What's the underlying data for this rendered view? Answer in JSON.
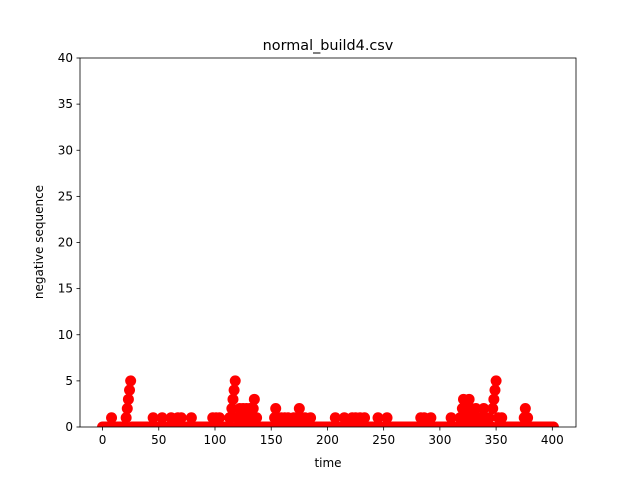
{
  "chart_data": {
    "type": "scatter",
    "title": "normal_build4.csv",
    "xlabel": "time",
    "ylabel": "negative sequence",
    "color": "#ff0000",
    "xlim": [
      -20.05,
      421.05
    ],
    "ylim": [
      0,
      40
    ],
    "xticks": [
      0,
      50,
      100,
      150,
      200,
      250,
      300,
      350,
      400
    ],
    "yticks": [
      0,
      5,
      10,
      15,
      20,
      25,
      30,
      35,
      40
    ],
    "x": [
      0,
      1,
      2,
      3,
      4,
      5,
      6,
      7,
      8,
      9,
      10,
      11,
      12,
      13,
      14,
      15,
      16,
      17,
      18,
      19,
      20,
      21,
      22,
      23,
      24,
      25,
      26,
      27,
      28,
      29,
      30,
      31,
      32,
      33,
      34,
      35,
      36,
      37,
      38,
      39,
      40,
      41,
      42,
      43,
      44,
      45,
      46,
      47,
      48,
      49,
      50,
      51,
      52,
      53,
      54,
      55,
      56,
      57,
      58,
      59,
      60,
      61,
      62,
      63,
      64,
      65,
      66,
      67,
      68,
      69,
      70,
      71,
      72,
      73,
      74,
      75,
      76,
      77,
      78,
      79,
      80,
      81,
      82,
      83,
      84,
      85,
      86,
      87,
      88,
      89,
      90,
      91,
      92,
      93,
      94,
      95,
      96,
      97,
      98,
      99,
      100,
      101,
      102,
      103,
      104,
      105,
      106,
      107,
      108,
      109,
      110,
      111,
      112,
      113,
      114,
      115,
      116,
      117,
      118,
      119,
      120,
      121,
      122,
      123,
      124,
      125,
      126,
      127,
      128,
      129,
      130,
      131,
      132,
      133,
      134,
      135,
      136,
      137,
      138,
      139,
      140,
      141,
      142,
      143,
      144,
      145,
      146,
      147,
      148,
      149,
      150,
      151,
      152,
      153,
      154,
      155,
      156,
      157,
      158,
      159,
      160,
      161,
      162,
      163,
      164,
      165,
      166,
      167,
      168,
      169,
      170,
      171,
      172,
      173,
      174,
      175,
      176,
      177,
      178,
      179,
      180,
      181,
      182,
      183,
      184,
      185,
      186,
      187,
      188,
      189,
      190,
      191,
      192,
      193,
      194,
      195,
      196,
      197,
      198,
      199,
      200,
      201,
      202,
      203,
      204,
      205,
      206,
      207,
      208,
      209,
      210,
      211,
      212,
      213,
      214,
      215,
      216,
      217,
      218,
      219,
      220,
      221,
      222,
      223,
      224,
      225,
      226,
      227,
      228,
      229,
      230,
      231,
      232,
      233,
      234,
      235,
      236,
      237,
      238,
      239,
      240,
      241,
      242,
      243,
      244,
      245,
      246,
      247,
      248,
      249,
      250,
      251,
      252,
      253,
      254,
      255,
      256,
      257,
      258,
      259,
      260,
      261,
      262,
      263,
      264,
      265,
      266,
      267,
      268,
      269,
      270,
      271,
      272,
      273,
      274,
      275,
      276,
      277,
      278,
      279,
      280,
      281,
      282,
      283,
      284,
      285,
      286,
      287,
      288,
      289,
      290,
      291,
      292,
      293,
      294,
      295,
      296,
      297,
      298,
      299,
      300,
      301,
      302,
      303,
      304,
      305,
      306,
      307,
      308,
      309,
      310,
      311,
      312,
      313,
      314,
      315,
      316,
      317,
      318,
      319,
      320,
      321,
      322,
      323,
      324,
      325,
      326,
      327,
      328,
      329,
      330,
      331,
      332,
      333,
      334,
      335,
      336,
      337,
      338,
      339,
      340,
      341,
      342,
      343,
      344,
      345,
      346,
      347,
      348,
      349,
      350,
      351,
      352,
      353,
      354,
      355,
      356,
      357,
      358,
      359,
      360,
      361,
      362,
      363,
      364,
      365,
      366,
      367,
      368,
      369,
      370,
      371,
      372,
      373,
      374,
      375,
      376,
      377,
      378,
      379,
      380,
      381,
      382,
      383,
      384,
      385,
      386,
      387,
      388,
      389,
      390,
      391,
      392,
      393,
      394,
      395,
      396,
      397,
      398,
      399,
      400,
      401
    ],
    "values": [
      0,
      0,
      0,
      0,
      0,
      0,
      0,
      0,
      1,
      0,
      0,
      0,
      0,
      0,
      0,
      0,
      0,
      0,
      0,
      0,
      0,
      1,
      2,
      3,
      4,
      5,
      0,
      0,
      0,
      0,
      0,
      0,
      0,
      0,
      0,
      0,
      0,
      0,
      0,
      0,
      0,
      0,
      0,
      0,
      0,
      1,
      0,
      0,
      0,
      0,
      0,
      0,
      0,
      1,
      0,
      0,
      0,
      0,
      0,
      0,
      0,
      1,
      0,
      0,
      0,
      0,
      0,
      1,
      0,
      0,
      1,
      0,
      0,
      0,
      0,
      0,
      0,
      0,
      0,
      1,
      0,
      0,
      0,
      0,
      0,
      0,
      0,
      0,
      0,
      0,
      0,
      0,
      0,
      0,
      0,
      0,
      0,
      0,
      1,
      0,
      0,
      1,
      0,
      0,
      1,
      0,
      0,
      0,
      0,
      0,
      0,
      0,
      0,
      1,
      0,
      2,
      3,
      4,
      5,
      1,
      0,
      1,
      2,
      0,
      1,
      2,
      0,
      1,
      2,
      0,
      1,
      2,
      0,
      1,
      2,
      3,
      0,
      1,
      0,
      0,
      0,
      0,
      0,
      0,
      0,
      0,
      0,
      0,
      0,
      0,
      0,
      0,
      0,
      1,
      2,
      0,
      1,
      0,
      0,
      1,
      0,
      0,
      1,
      0,
      0,
      1,
      0,
      0,
      0,
      0,
      1,
      0,
      0,
      1,
      0,
      2,
      0,
      1,
      0,
      0,
      1,
      0,
      0,
      0,
      0,
      1,
      0,
      0,
      0,
      0,
      0,
      0,
      0,
      0,
      0,
      0,
      0,
      0,
      0,
      0,
      0,
      0,
      0,
      0,
      0,
      0,
      0,
      1,
      0,
      0,
      0,
      0,
      0,
      0,
      0,
      1,
      0,
      0,
      0,
      0,
      0,
      0,
      1,
      0,
      0,
      1,
      0,
      0,
      0,
      1,
      0,
      0,
      0,
      1,
      0,
      0,
      0,
      0,
      0,
      0,
      0,
      0,
      0,
      0,
      0,
      1,
      0,
      0,
      0,
      0,
      0,
      0,
      0,
      1,
      0,
      0,
      0,
      0,
      0,
      0,
      0,
      0,
      0,
      0,
      0,
      0,
      0,
      0,
      0,
      0,
      0,
      0,
      0,
      0,
      0,
      0,
      0,
      0,
      0,
      0,
      0,
      0,
      0,
      1,
      0,
      0,
      1,
      0,
      0,
      0,
      0,
      0,
      1,
      0,
      0,
      0,
      0,
      0,
      0,
      0,
      0,
      0,
      0,
      0,
      0,
      0,
      0,
      0,
      0,
      0,
      1,
      0,
      0,
      0,
      0,
      0,
      0,
      0,
      1,
      0,
      2,
      3,
      1,
      0,
      2,
      0,
      3,
      1,
      2,
      0,
      1,
      0,
      2,
      0,
      1,
      0,
      0,
      1,
      0,
      2,
      0,
      1,
      0,
      0,
      1,
      0,
      0,
      2,
      3,
      4,
      5,
      0,
      1,
      0,
      0,
      1,
      0,
      0,
      0,
      0,
      0,
      0,
      0,
      0,
      0,
      0,
      0,
      0,
      0,
      0,
      0,
      0,
      0,
      0,
      0,
      1,
      2,
      0,
      1,
      0,
      0,
      0,
      0,
      0,
      0,
      0,
      0,
      0,
      0,
      0,
      0,
      0,
      0,
      0,
      0,
      0,
      0,
      0,
      0,
      0,
      0,
      0
    ]
  }
}
